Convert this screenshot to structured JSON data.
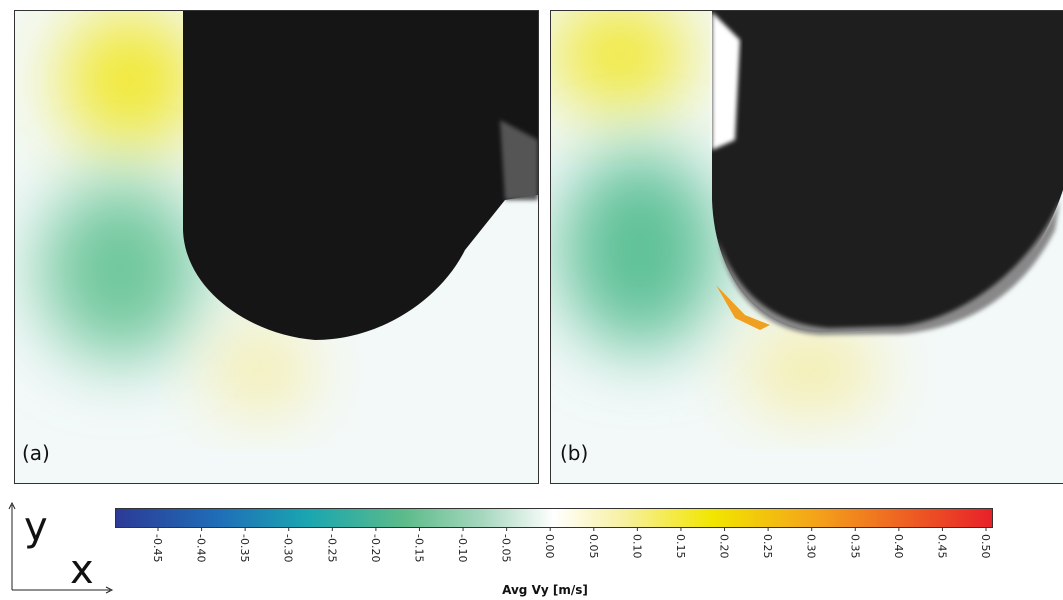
{
  "panels": [
    {
      "label": "(a)"
    },
    {
      "label": "(b)"
    }
  ],
  "axes": {
    "y": "y",
    "x": "x"
  },
  "colorbar": {
    "label": "Avg Vy [m/s]",
    "ticks": [
      "-0.45",
      "-0.40",
      "-0.35",
      "-0.30",
      "-0.25",
      "-0.20",
      "-0.15",
      "-0.10",
      "-0.05",
      "0.00",
      "0.05",
      "0.10",
      "0.15",
      "0.20",
      "0.25",
      "0.30",
      "0.35",
      "0.40",
      "0.45",
      "0.50"
    ]
  }
}
